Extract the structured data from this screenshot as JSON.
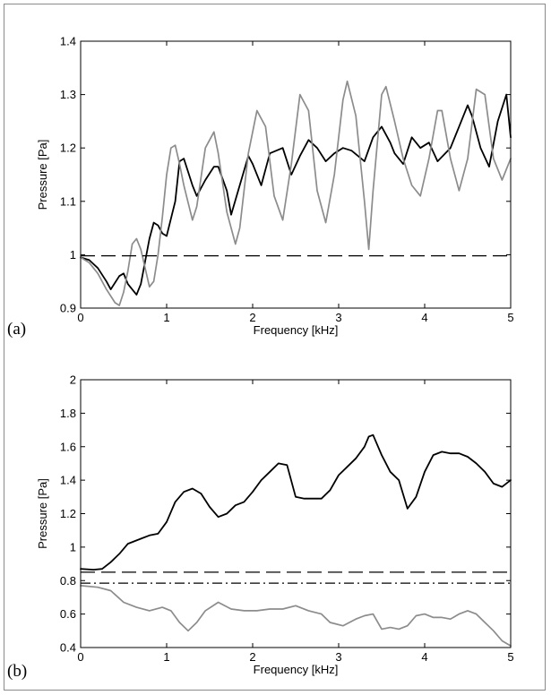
{
  "chart_data": [
    {
      "type": "line",
      "panel_label": "(a)",
      "xlabel": "Frequency [kHz]",
      "ylabel": "Pressure [Pa]",
      "xlim": [
        0,
        5
      ],
      "ylim": [
        0.9,
        1.4
      ],
      "xticks": [
        0,
        1,
        2,
        3,
        4,
        5
      ],
      "yticks": [
        0.9,
        1,
        1.1,
        1.2,
        1.3,
        1.4
      ],
      "ytick_labels": [
        "0.9",
        "1",
        "1.1",
        "1.2",
        "1.3",
        "1.4"
      ],
      "grid": false,
      "series": [
        {
          "color": "#000000",
          "style": "solid",
          "x": [
            0,
            0.1,
            0.2,
            0.3,
            0.35,
            0.45,
            0.5,
            0.55,
            0.65,
            0.7,
            0.8,
            0.85,
            0.9,
            0.95,
            1.0,
            1.1,
            1.15,
            1.2,
            1.3,
            1.35,
            1.45,
            1.55,
            1.6,
            1.7,
            1.75,
            1.85,
            1.95,
            2.0,
            2.1,
            2.2,
            2.35,
            2.45,
            2.55,
            2.65,
            2.75,
            2.85,
            2.95,
            3.05,
            3.15,
            3.3,
            3.4,
            3.5,
            3.6,
            3.65,
            3.75,
            3.85,
            3.95,
            4.05,
            4.15,
            4.3,
            4.4,
            4.5,
            4.55,
            4.65,
            4.75,
            4.85,
            4.95,
            5.0
          ],
          "y": [
            0.995,
            0.99,
            0.975,
            0.95,
            0.935,
            0.96,
            0.965,
            0.945,
            0.925,
            0.945,
            1.03,
            1.06,
            1.055,
            1.04,
            1.035,
            1.1,
            1.175,
            1.18,
            1.13,
            1.11,
            1.14,
            1.165,
            1.165,
            1.12,
            1.075,
            1.13,
            1.185,
            1.17,
            1.13,
            1.19,
            1.2,
            1.15,
            1.185,
            1.215,
            1.2,
            1.175,
            1.19,
            1.2,
            1.195,
            1.175,
            1.22,
            1.24,
            1.21,
            1.19,
            1.17,
            1.22,
            1.2,
            1.21,
            1.175,
            1.2,
            1.24,
            1.28,
            1.26,
            1.2,
            1.165,
            1.25,
            1.3,
            1.22
          ]
        },
        {
          "color": "#8c8c8c",
          "style": "solid",
          "x": [
            0,
            0.1,
            0.2,
            0.3,
            0.4,
            0.45,
            0.5,
            0.55,
            0.6,
            0.65,
            0.7,
            0.8,
            0.85,
            0.9,
            0.95,
            1.0,
            1.05,
            1.1,
            1.15,
            1.2,
            1.3,
            1.35,
            1.45,
            1.55,
            1.6,
            1.7,
            1.8,
            1.85,
            1.95,
            2.05,
            2.15,
            2.25,
            2.35,
            2.45,
            2.55,
            2.65,
            2.75,
            2.85,
            2.95,
            3.05,
            3.1,
            3.2,
            3.3,
            3.35,
            3.4,
            3.5,
            3.55,
            3.65,
            3.75,
            3.85,
            3.95,
            4.05,
            4.15,
            4.2,
            4.3,
            4.4,
            4.5,
            4.6,
            4.7,
            4.8,
            4.9,
            5.0
          ],
          "y": [
            0.995,
            0.985,
            0.965,
            0.935,
            0.91,
            0.905,
            0.93,
            0.97,
            1.02,
            1.03,
            1.01,
            0.94,
            0.95,
            1.0,
            1.07,
            1.15,
            1.2,
            1.205,
            1.17,
            1.13,
            1.065,
            1.09,
            1.2,
            1.23,
            1.19,
            1.08,
            1.02,
            1.05,
            1.19,
            1.27,
            1.24,
            1.11,
            1.065,
            1.17,
            1.3,
            1.27,
            1.12,
            1.06,
            1.15,
            1.29,
            1.325,
            1.26,
            1.1,
            1.01,
            1.12,
            1.3,
            1.315,
            1.25,
            1.18,
            1.13,
            1.11,
            1.18,
            1.27,
            1.27,
            1.18,
            1.12,
            1.18,
            1.31,
            1.3,
            1.18,
            1.14,
            1.18
          ]
        },
        {
          "color": "#000000",
          "style": "dashed",
          "x": [
            0,
            5
          ],
          "y": [
            0.998,
            0.998
          ]
        }
      ]
    },
    {
      "type": "line",
      "panel_label": "(b)",
      "xlabel": "Frequency [kHz]",
      "ylabel": "Pressure [Pa]",
      "xlim": [
        0,
        5
      ],
      "ylim": [
        0.4,
        2.0
      ],
      "xticks": [
        0,
        1,
        2,
        3,
        4,
        5
      ],
      "yticks": [
        0.4,
        0.6,
        0.8,
        1.0,
        1.2,
        1.4,
        1.6,
        1.8,
        2.0
      ],
      "ytick_labels": [
        "0.4",
        "0.6",
        "0.8",
        "1",
        "1.2",
        "1.4",
        "1.6",
        "1.8",
        "2"
      ],
      "grid": false,
      "series": [
        {
          "color": "#000000",
          "style": "solid",
          "x": [
            0,
            0.15,
            0.25,
            0.35,
            0.45,
            0.55,
            0.7,
            0.8,
            0.9,
            1.0,
            1.1,
            1.2,
            1.3,
            1.4,
            1.5,
            1.6,
            1.7,
            1.8,
            1.9,
            2.0,
            2.1,
            2.2,
            2.3,
            2.4,
            2.5,
            2.6,
            2.7,
            2.8,
            2.9,
            3.0,
            3.1,
            3.2,
            3.3,
            3.35,
            3.4,
            3.5,
            3.6,
            3.7,
            3.8,
            3.9,
            4.0,
            4.1,
            4.2,
            4.3,
            4.4,
            4.5,
            4.6,
            4.7,
            4.8,
            4.9,
            5.0
          ],
          "y": [
            0.87,
            0.865,
            0.87,
            0.91,
            0.96,
            1.02,
            1.05,
            1.07,
            1.08,
            1.15,
            1.27,
            1.33,
            1.35,
            1.32,
            1.24,
            1.18,
            1.2,
            1.25,
            1.27,
            1.33,
            1.4,
            1.45,
            1.5,
            1.49,
            1.3,
            1.29,
            1.29,
            1.29,
            1.34,
            1.43,
            1.48,
            1.53,
            1.6,
            1.66,
            1.67,
            1.55,
            1.45,
            1.4,
            1.23,
            1.3,
            1.45,
            1.55,
            1.57,
            1.56,
            1.56,
            1.54,
            1.5,
            1.45,
            1.38,
            1.36,
            1.4
          ]
        },
        {
          "color": "#8c8c8c",
          "style": "solid",
          "x": [
            0,
            0.2,
            0.35,
            0.5,
            0.65,
            0.8,
            0.95,
            1.05,
            1.15,
            1.25,
            1.35,
            1.45,
            1.6,
            1.75,
            1.9,
            2.05,
            2.2,
            2.35,
            2.5,
            2.65,
            2.8,
            2.9,
            3.05,
            3.2,
            3.3,
            3.4,
            3.5,
            3.6,
            3.7,
            3.8,
            3.9,
            4.0,
            4.1,
            4.2,
            4.3,
            4.4,
            4.5,
            4.6,
            4.7,
            4.8,
            4.9,
            5.0
          ],
          "y": [
            0.77,
            0.76,
            0.74,
            0.67,
            0.64,
            0.62,
            0.64,
            0.62,
            0.55,
            0.5,
            0.55,
            0.62,
            0.67,
            0.63,
            0.62,
            0.62,
            0.63,
            0.63,
            0.65,
            0.62,
            0.6,
            0.55,
            0.53,
            0.57,
            0.59,
            0.6,
            0.51,
            0.52,
            0.51,
            0.53,
            0.59,
            0.6,
            0.58,
            0.58,
            0.57,
            0.6,
            0.62,
            0.6,
            0.55,
            0.5,
            0.44,
            0.41
          ]
        },
        {
          "color": "#000000",
          "style": "dashed",
          "x": [
            0,
            5
          ],
          "y": [
            0.85,
            0.85
          ]
        },
        {
          "color": "#000000",
          "style": "dashdot",
          "x": [
            0,
            5
          ],
          "y": [
            0.785,
            0.785
          ]
        }
      ]
    }
  ]
}
